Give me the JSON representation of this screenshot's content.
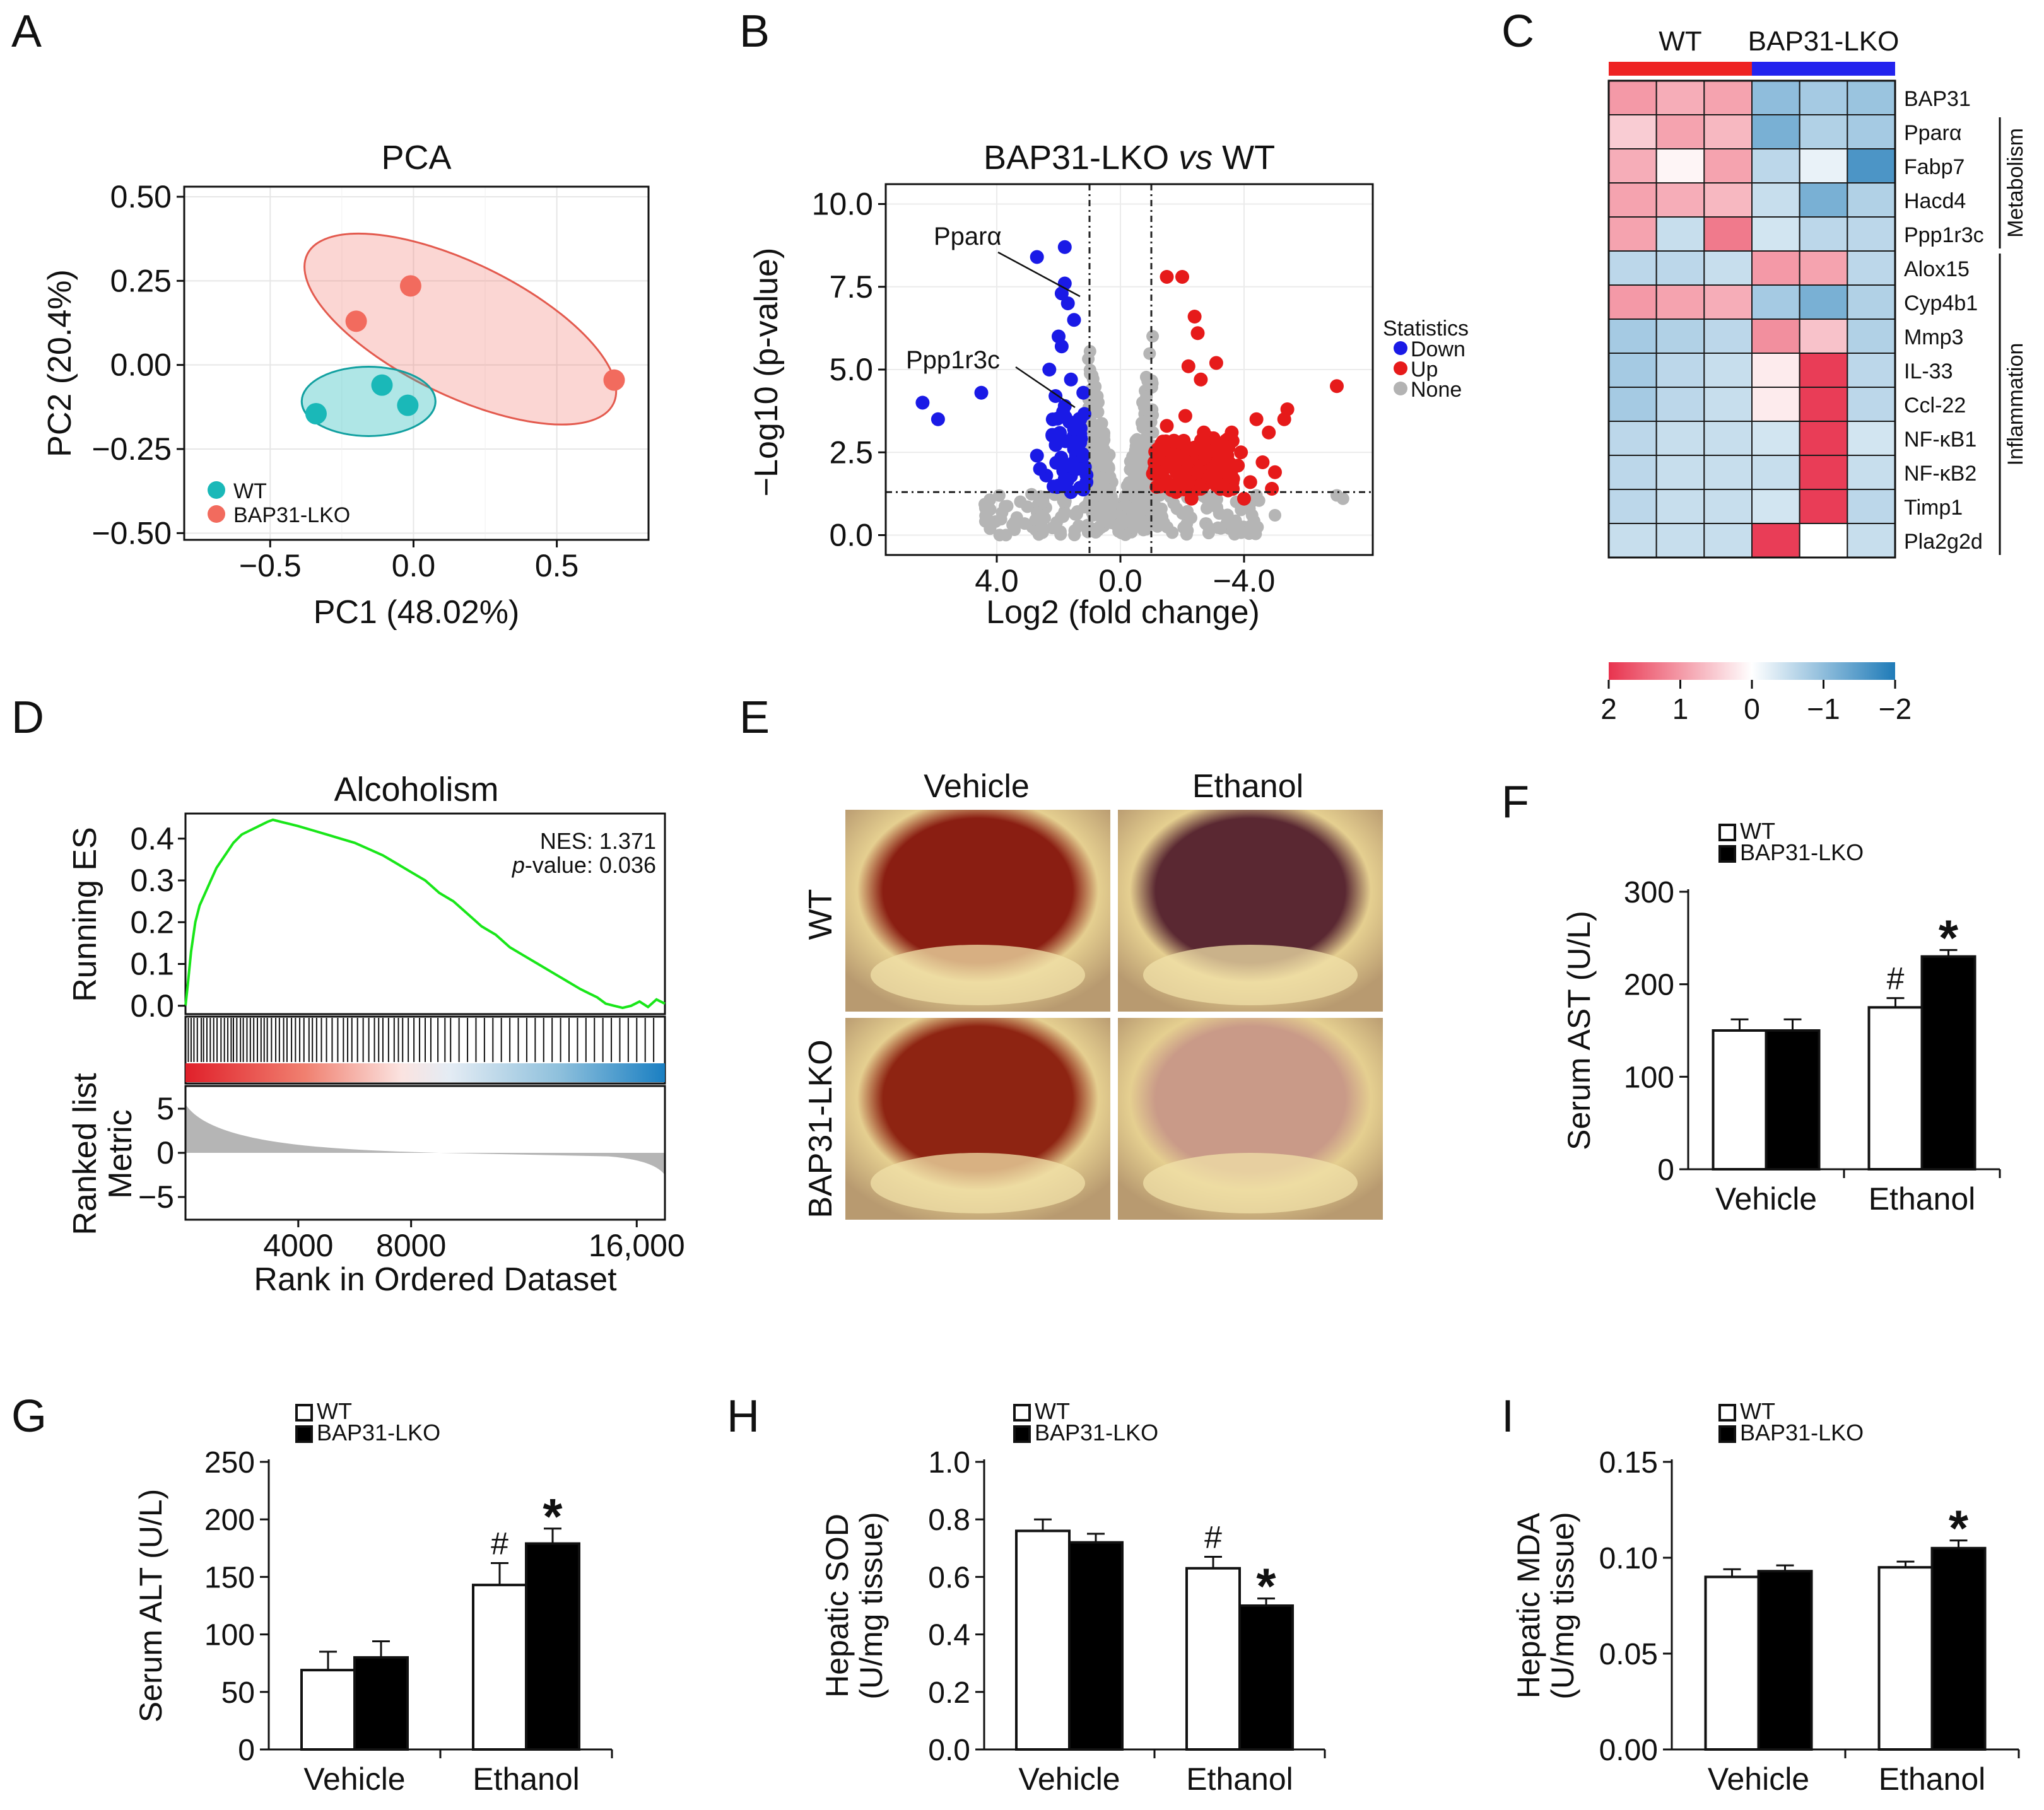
{
  "chart_data": [
    {
      "panel": "A",
      "type": "scatter",
      "title": "PCA",
      "xlabel": "PC1 (48.02%)",
      "ylabel": "PC2 (20.4%)",
      "xlim": [
        -0.8,
        0.82
      ],
      "ylim": [
        -0.52,
        0.53
      ],
      "xticks": [
        "−0.5",
        "0.0",
        "0.5"
      ],
      "xtick_values": [
        -0.5,
        0.0,
        0.5
      ],
      "yticks": [
        "0.50",
        "0.25",
        "0.00",
        "−0.25",
        "−0.50"
      ],
      "ytick_values": [
        0.5,
        0.25,
        0.0,
        -0.25,
        -0.5
      ],
      "series": [
        {
          "name": "WT",
          "color": "#1ab8b8",
          "points": [
            [
              -0.34,
              -0.145
            ],
            [
              -0.11,
              -0.06
            ],
            [
              -0.02,
              -0.12
            ]
          ]
        },
        {
          "name": "BAP31-LKO",
          "color": "#f26b5e",
          "points": [
            [
              -0.2,
              0.13
            ],
            [
              -0.01,
              0.235
            ],
            [
              0.7,
              -0.045
            ]
          ]
        }
      ],
      "legend": [
        "WT",
        "BAP31-LKO"
      ]
    },
    {
      "panel": "B",
      "type": "scatter",
      "title_prefix": "BAP31-LKO ",
      "title_italic": "vs",
      "title_suffix": " WT",
      "xlabel": "Log2 (fold change)",
      "ylabel": "−Log10 (p-value)",
      "xticks": [
        "4.0",
        "0.0",
        "−4.0"
      ],
      "yticks": [
        "10.0",
        "7.5",
        "5.0",
        "2.5",
        "0.0"
      ],
      "ylim": [
        -0.6,
        10.6
      ],
      "legend_title": "Statistics",
      "legend": [
        {
          "label": "Down",
          "color": "#1a1ae6"
        },
        {
          "label": "Up",
          "color": "#e61a1a"
        },
        {
          "label": "None",
          "color": "#b3b3b3"
        }
      ],
      "annotations": [
        "Pparα",
        "Ppp1r3c"
      ],
      "down_points": [
        [
          6.4,
          4.0
        ],
        [
          5.9,
          3.5
        ],
        [
          4.5,
          4.3
        ],
        [
          2.7,
          8.4
        ],
        [
          1.8,
          8.7
        ],
        [
          2.0,
          6.0
        ],
        [
          1.9,
          5.7
        ],
        [
          1.6,
          4.7
        ],
        [
          2.3,
          5.0
        ],
        [
          1.9,
          7.3
        ],
        [
          1.7,
          7.0
        ],
        [
          1.8,
          7.6
        ],
        [
          1.5,
          6.5
        ],
        [
          2.1,
          4.2
        ],
        [
          1.8,
          3.9
        ],
        [
          1.5,
          3.2
        ],
        [
          1.3,
          2.8
        ],
        [
          2.2,
          3.0
        ],
        [
          2.7,
          2.4
        ],
        [
          2.4,
          1.8
        ],
        [
          2.0,
          1.5
        ],
        [
          1.6,
          1.3
        ],
        [
          1.4,
          2.0
        ],
        [
          1.3,
          3.5
        ],
        [
          1.2,
          2.4
        ],
        [
          1.1,
          1.6
        ],
        [
          1.8,
          1.7
        ],
        [
          1.5,
          2.6
        ],
        [
          2.6,
          2.0
        ],
        [
          1.2,
          4.3
        ]
      ],
      "up_points": [
        [
          -1.5,
          7.8
        ],
        [
          -2.0,
          7.8
        ],
        [
          -2.4,
          6.6
        ],
        [
          -2.5,
          6.1
        ],
        [
          -2.2,
          5.1
        ],
        [
          -2.6,
          4.7
        ],
        [
          -3.1,
          5.2
        ],
        [
          -7.0,
          4.5
        ],
        [
          -5.4,
          3.8
        ],
        [
          -5.3,
          3.5
        ],
        [
          -4.8,
          3.1
        ],
        [
          -4.4,
          3.5
        ],
        [
          -3.9,
          2.5
        ],
        [
          -4.6,
          2.2
        ],
        [
          -5.0,
          1.9
        ],
        [
          -3.4,
          1.9
        ],
        [
          -2.9,
          1.8
        ],
        [
          -2.2,
          1.6
        ],
        [
          -1.6,
          1.5
        ],
        [
          -1.2,
          1.9
        ],
        [
          -1.4,
          2.6
        ],
        [
          -1.9,
          2.8
        ],
        [
          -2.7,
          3.1
        ],
        [
          -3.3,
          2.7
        ],
        [
          -3.8,
          2.1
        ],
        [
          -4.2,
          1.6
        ],
        [
          -4.9,
          1.4
        ],
        [
          -2.3,
          1.1
        ],
        [
          -1.8,
          1.3
        ],
        [
          -1.1,
          2.2
        ],
        [
          -1.5,
          3.3
        ],
        [
          -2.1,
          3.6
        ],
        [
          -3.6,
          3.1
        ],
        [
          -4.0,
          1.1
        ],
        [
          -2.6,
          1.4
        ],
        [
          -1.3,
          1.5
        ],
        [
          -1.7,
          2.1
        ],
        [
          -2.0,
          2.3
        ],
        [
          -2.8,
          2.5
        ],
        [
          -3.1,
          1.5
        ]
      ],
      "dashed_x": [
        1.0,
        -1.0
      ],
      "dashed_y": 1.3
    },
    {
      "panel": "C",
      "type": "heatmap",
      "groups": [
        {
          "label": "WT",
          "color": "#ee2323"
        },
        {
          "label": "BAP31-LKO",
          "color": "#2323ee"
        }
      ],
      "rows": [
        "BAP31",
        "Pparα",
        "Fabp7",
        "Hacd4",
        "Ppp1r3c",
        "Alox15",
        "Cyp4b1",
        "Mmp3",
        "IL-33",
        "Ccl-22",
        "NF-κB1",
        "NF-κB2",
        "Timp1",
        "Pla2g2d"
      ],
      "values": [
        [
          1.0,
          0.8,
          0.9,
          -1.0,
          -0.8,
          -0.9
        ],
        [
          0.5,
          0.9,
          0.7,
          -1.2,
          -0.7,
          -0.8
        ],
        [
          0.8,
          0.1,
          0.9,
          -0.6,
          -0.2,
          -1.6
        ],
        [
          0.9,
          0.8,
          0.7,
          -0.5,
          -1.2,
          -0.7
        ],
        [
          0.9,
          -0.5,
          1.3,
          -0.4,
          -0.6,
          -0.6
        ],
        [
          -0.6,
          -0.6,
          -0.5,
          1.0,
          0.9,
          -0.6
        ],
        [
          1.0,
          0.9,
          0.8,
          -0.8,
          -1.2,
          -0.7
        ],
        [
          -0.8,
          -0.7,
          -0.6,
          1.1,
          0.6,
          -0.7
        ],
        [
          -0.8,
          -0.6,
          -0.5,
          0.2,
          1.9,
          -0.6
        ],
        [
          -0.8,
          -0.6,
          -0.5,
          0.2,
          1.9,
          -0.6
        ],
        [
          -0.6,
          -0.5,
          -0.5,
          -0.4,
          1.9,
          -0.4
        ],
        [
          -0.6,
          -0.5,
          -0.5,
          -0.5,
          1.9,
          -0.5
        ],
        [
          -0.6,
          -0.5,
          -0.5,
          -0.4,
          1.9,
          -0.6
        ],
        [
          -0.5,
          -0.5,
          -0.5,
          1.9,
          0.0,
          -0.5
        ]
      ],
      "side_labels": [
        {
          "label": "Metabolism",
          "rows": [
            1,
            4
          ]
        },
        {
          "label": "Inflammation",
          "rows": [
            5,
            13
          ]
        }
      ],
      "colorbar_ticks": [
        "2",
        "1",
        "0",
        "−1",
        "−2"
      ],
      "colorbar_values": [
        2,
        1,
        0,
        -1,
        -2
      ],
      "colors": {
        "high": "#e8334e",
        "mid": "#ffffff",
        "low": "#1f7bb8"
      }
    },
    {
      "panel": "D",
      "type": "line",
      "title": "Alcoholism",
      "ylabel": "Running ES",
      "ylabel2": "Ranked list Metric",
      "xlabel": "Rank in Ordered Dataset",
      "xticks": [
        "4000",
        "8000",
        "16,000"
      ],
      "xtick_values": [
        4000,
        8000,
        16000
      ],
      "yticks": [
        "0.4",
        "0.3",
        "0.2",
        "0.1",
        "0.0"
      ],
      "ytick_values": [
        0.4,
        0.3,
        0.2,
        0.1,
        0.0
      ],
      "yticks2": [
        "5",
        "0",
        "−5"
      ],
      "ytick_values2": [
        5,
        0,
        -5
      ],
      "nes_text": "NES: 1.371",
      "pvalue_label": "p",
      "pvalue_text": "-value: 0.036",
      "xlim": [
        0,
        17000
      ],
      "ylim": [
        -0.02,
        0.46
      ],
      "x": [
        0,
        80,
        200,
        350,
        500,
        700,
        900,
        1100,
        1300,
        1500,
        1700,
        2000,
        2300,
        2600,
        2900,
        3100,
        3400,
        3700,
        4000,
        4500,
        5000,
        5500,
        6000,
        6500,
        7000,
        7500,
        8000,
        8500,
        9000,
        9500,
        10000,
        10500,
        11000,
        11500,
        12000,
        12500,
        13000,
        13500,
        14000,
        14300,
        14600,
        14900,
        15200,
        15500,
        15800,
        16100,
        16400,
        16700,
        17000
      ],
      "y": [
        0.0,
        0.05,
        0.13,
        0.2,
        0.24,
        0.27,
        0.3,
        0.33,
        0.35,
        0.37,
        0.39,
        0.41,
        0.42,
        0.43,
        0.44,
        0.445,
        0.44,
        0.435,
        0.43,
        0.42,
        0.41,
        0.4,
        0.39,
        0.375,
        0.36,
        0.34,
        0.32,
        0.3,
        0.27,
        0.25,
        0.22,
        0.19,
        0.17,
        0.14,
        0.12,
        0.1,
        0.08,
        0.06,
        0.04,
        0.03,
        0.02,
        0.005,
        0.0,
        -0.005,
        0.0,
        0.01,
        -0.003,
        0.015,
        0.005
      ],
      "hits": [
        100,
        200,
        300,
        420,
        560,
        640,
        760,
        880,
        1000,
        1120,
        1260,
        1380,
        1500,
        1620,
        1700,
        1820,
        1950,
        2050,
        2180,
        2300,
        2420,
        2550,
        2680,
        2790,
        2900,
        3050,
        3200,
        3330,
        3480,
        3600,
        3760,
        3900,
        4050,
        4200,
        4380,
        4500,
        4650,
        4820,
        5000,
        5200,
        5400,
        5600,
        5750,
        5900,
        6100,
        6300,
        6500,
        6700,
        6850,
        7000,
        7200,
        7400,
        7550,
        7700,
        7900,
        8100,
        8300,
        8500,
        8700,
        8950,
        9200,
        9400,
        9700,
        10000,
        10300,
        10600,
        10900,
        11200,
        11500,
        11800,
        12100,
        12400,
        12700,
        13000,
        13300,
        13600,
        13900,
        14200,
        14500,
        14800,
        15100,
        15400,
        15700,
        16000,
        16300,
        16600
      ]
    },
    {
      "panel": "F",
      "type": "bar",
      "ylabel": "Serum AST (U/L)",
      "categories": [
        "Vehicle",
        "Ethanol"
      ],
      "ylim": [
        0,
        300
      ],
      "yticks": [
        "0",
        "100",
        "200",
        "300"
      ],
      "ytick_values": [
        0,
        100,
        200,
        300
      ],
      "series": [
        {
          "name": "WT",
          "values": [
            150,
            175
          ],
          "errors": [
            12,
            10
          ]
        },
        {
          "name": "BAP31-LKO",
          "values": [
            150,
            230
          ],
          "errors": [
            12,
            7
          ]
        }
      ],
      "markers": [
        {
          "category": 1,
          "series": 0,
          "symbol": "#"
        },
        {
          "category": 1,
          "series": 1,
          "symbol": "*"
        }
      ],
      "legend": [
        "WT",
        "BAP31-LKO"
      ]
    },
    {
      "panel": "G",
      "type": "bar",
      "ylabel": "Serum ALT (U/L)",
      "categories": [
        "Vehicle",
        "Ethanol"
      ],
      "ylim": [
        0,
        250
      ],
      "yticks": [
        "0",
        "50",
        "100",
        "150",
        "200",
        "250"
      ],
      "ytick_values": [
        0,
        50,
        100,
        150,
        200,
        250
      ],
      "series": [
        {
          "name": "WT",
          "values": [
            69,
            143
          ],
          "errors": [
            16,
            19
          ]
        },
        {
          "name": "BAP31-LKO",
          "values": [
            80,
            179
          ],
          "errors": [
            14,
            13
          ]
        }
      ],
      "markers": [
        {
          "category": 1,
          "series": 0,
          "symbol": "#"
        },
        {
          "category": 1,
          "series": 1,
          "symbol": "*"
        }
      ],
      "legend": [
        "WT",
        "BAP31-LKO"
      ]
    },
    {
      "panel": "H",
      "type": "bar",
      "ylabel": "Hepatic SOD",
      "ylabel2": "(U/mg tissue)",
      "categories": [
        "Vehicle",
        "Ethanol"
      ],
      "ylim": [
        0,
        1.0
      ],
      "yticks": [
        "0.0",
        "0.2",
        "0.4",
        "0.6",
        "0.8",
        "1.0"
      ],
      "ytick_values": [
        0,
        0.2,
        0.4,
        0.6,
        0.8,
        1.0
      ],
      "series": [
        {
          "name": "WT",
          "values": [
            0.76,
            0.63
          ],
          "errors": [
            0.04,
            0.04
          ]
        },
        {
          "name": "BAP31-LKO",
          "values": [
            0.72,
            0.5
          ],
          "errors": [
            0.03,
            0.025
          ]
        }
      ],
      "markers": [
        {
          "category": 1,
          "series": 0,
          "symbol": "#"
        },
        {
          "category": 1,
          "series": 1,
          "symbol": "*"
        }
      ],
      "legend": [
        "WT",
        "BAP31-LKO"
      ]
    },
    {
      "panel": "I",
      "type": "bar",
      "ylabel": "Hepatic MDA",
      "ylabel2": "(U/mg tissue)",
      "categories": [
        "Vehicle",
        "Ethanol"
      ],
      "ylim": [
        0,
        0.15
      ],
      "yticks": [
        "0.00",
        "0.05",
        "0.10",
        "0.15"
      ],
      "ytick_values": [
        0,
        0.05,
        0.1,
        0.15
      ],
      "series": [
        {
          "name": "WT",
          "values": [
            0.09,
            0.095
          ],
          "errors": [
            0.004,
            0.003
          ]
        },
        {
          "name": "BAP31-LKO",
          "values": [
            0.093,
            0.105
          ],
          "errors": [
            0.003,
            0.004
          ]
        }
      ],
      "markers": [
        {
          "category": 1,
          "series": 1,
          "symbol": "*"
        }
      ],
      "legend": [
        "WT",
        "BAP31-LKO"
      ]
    }
  ],
  "panels": {
    "labels": [
      "A",
      "B",
      "C",
      "D",
      "E",
      "F",
      "G",
      "H",
      "I"
    ],
    "E": {
      "columns": [
        "Vehicle",
        "Ethanol"
      ],
      "rows": [
        "WT",
        "BAP31-LKO"
      ],
      "photo_tones": [
        [
          "#8a1e12",
          "#5a2832"
        ],
        [
          "#8e2412",
          "#c99a88"
        ]
      ]
    }
  }
}
